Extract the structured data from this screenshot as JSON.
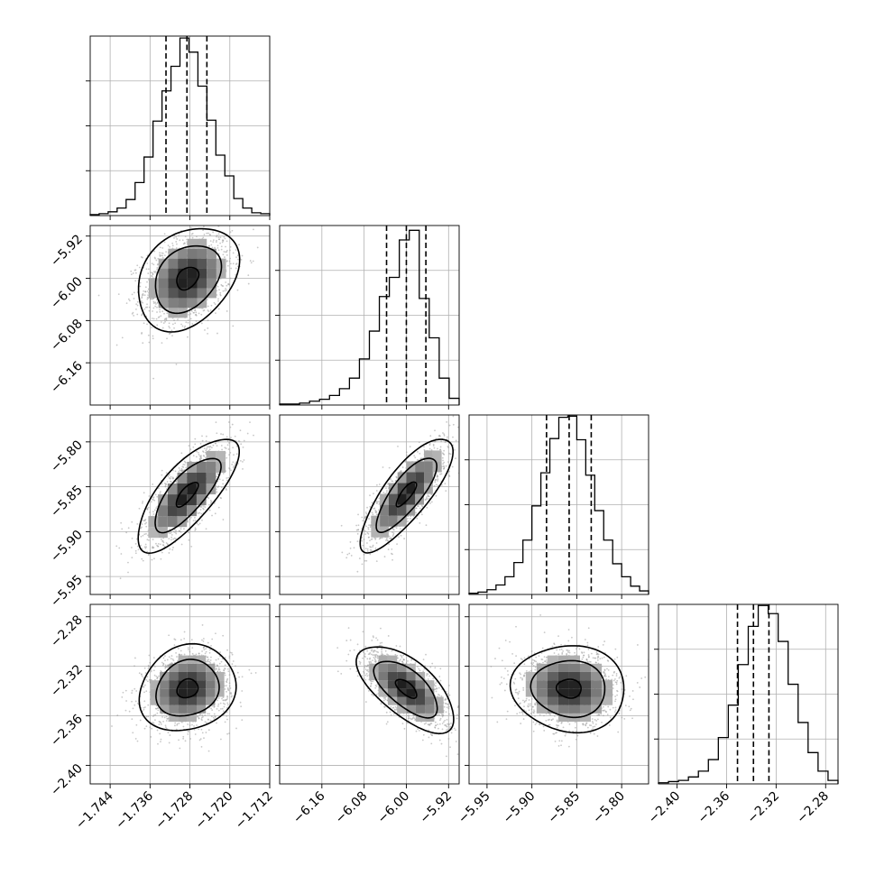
{
  "chart_data": {
    "type": "corner",
    "grid": true,
    "parameters": [
      {
        "index": 0,
        "range": [
          -1.748,
          -1.712
        ],
        "ticks": [
          -1.744,
          -1.736,
          -1.728,
          -1.72,
          -1.712
        ],
        "tick_labels": [
          "−1.744",
          "−1.736",
          "−1.728",
          "−1.720",
          "−1.712"
        ],
        "quantiles": [
          -1.7328,
          -1.7286,
          -1.7246
        ],
        "hist_counts": [
          1,
          2,
          4,
          8,
          17,
          35,
          62,
          100,
          132,
          158,
          188,
          173,
          137,
          101,
          64,
          42,
          18,
          8,
          3,
          2
        ],
        "hist_max": 190
      },
      {
        "index": 1,
        "range": [
          -6.24,
          -5.9
        ],
        "ticks": [
          -6.16,
          -6.08,
          -6.0,
          -5.92
        ],
        "tick_labels": [
          "−6.16",
          "−6.08",
          "−6.00",
          "−5.92"
        ],
        "quantiles": [
          -6.0375,
          -6.0,
          -5.963
        ],
        "hist_counts": [
          1,
          1,
          2,
          4,
          6,
          10,
          17,
          28,
          48,
          77,
          113,
          133,
          172,
          182,
          111,
          70,
          28,
          7
        ],
        "hist_max": 187
      },
      {
        "index": 2,
        "range": [
          -5.97,
          -5.77
        ],
        "ticks": [
          -5.95,
          -5.9,
          -5.85,
          -5.8
        ],
        "tick_labels": [
          "−5.95",
          "−5.90",
          "−5.85",
          "−5.80"
        ],
        "quantiles": [
          -5.8837,
          -5.8585,
          -5.8339
        ],
        "hist_counts": [
          1,
          2,
          4,
          8,
          15,
          27,
          46,
          75,
          103,
          132,
          150,
          151,
          131,
          101,
          71,
          46,
          26,
          15,
          7,
          3
        ],
        "hist_max": 152
      },
      {
        "index": 3,
        "range": [
          -2.415,
          -2.27
        ],
        "ticks": [
          -2.4,
          -2.36,
          -2.32,
          -2.28
        ],
        "tick_labels": [
          "−2.40",
          "−2.36",
          "−2.32",
          "−2.28"
        ],
        "quantiles": [
          -2.3512,
          -2.3383,
          -2.3258
        ],
        "hist_counts": [
          1,
          2,
          3,
          6,
          11,
          21,
          40,
          68,
          103,
          136,
          154,
          147,
          123,
          86,
          53,
          27,
          11,
          3
        ],
        "hist_max": 155
      }
    ],
    "pairs": [
      {
        "x": 0,
        "y": 1,
        "mean": [
          -1.7285,
          -6.0
        ],
        "sd": [
          0.0044,
          0.0425
        ],
        "corr": 0.3
      },
      {
        "x": 0,
        "y": 2,
        "mean": [
          -1.7286,
          -5.8585
        ],
        "sd": [
          0.0044,
          0.0275
        ],
        "corr": 0.75
      },
      {
        "x": 0,
        "y": 3,
        "mean": [
          -1.7285,
          -2.338
        ],
        "sd": [
          0.0042,
          0.0152
        ],
        "corr": 0.15
      },
      {
        "x": 1,
        "y": 2,
        "mean": [
          -6.0,
          -5.858
        ],
        "sd": [
          0.038,
          0.0275
        ],
        "corr": 0.8
      },
      {
        "x": 1,
        "y": 3,
        "mean": [
          -6.0,
          -2.338
        ],
        "sd": [
          0.04,
          0.0152
        ],
        "corr": -0.65
      },
      {
        "x": 2,
        "y": 3,
        "mean": [
          -5.8585,
          -2.338
        ],
        "sd": [
          0.0275,
          0.0152
        ],
        "corr": -0.05
      }
    ],
    "contour_levels": [
      0.5,
      1.5,
      2.3
    ],
    "hist2d_bins": 8,
    "colors": {
      "scatter": "#9a9a9a",
      "lines": "#000000",
      "grid": "#b0b0b0"
    }
  }
}
